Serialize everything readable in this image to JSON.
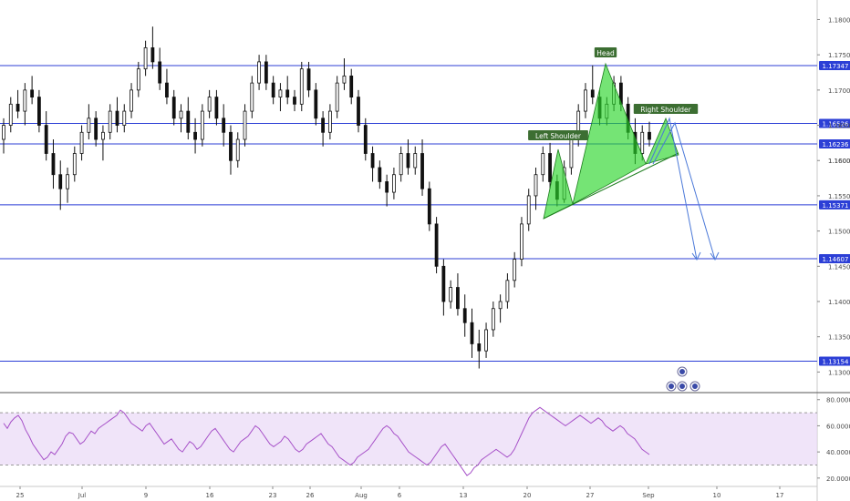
{
  "chart_data": {
    "type": "candlestick",
    "symbol_context": "forex daily price chart with RSI",
    "price_axis": {
      "ylim": [
        1.1285,
        1.182
      ],
      "ticks": [
        "1.18000",
        "1.17500",
        "1.17000",
        "1.16500",
        "1.16000",
        "1.15500",
        "1.15000",
        "1.14500",
        "1.14000",
        "1.13500",
        "1.13000"
      ]
    },
    "levels": [
      {
        "value": 1.17347,
        "label": "1.17347"
      },
      {
        "value": 1.16526,
        "label": "1.16526"
      },
      {
        "value": 1.16236,
        "label": "1.16236"
      },
      {
        "value": 1.16006,
        "label": "1.16006",
        "style": "current"
      },
      {
        "value": 1.15371,
        "label": "1.15371"
      },
      {
        "value": 1.14607,
        "label": "1.14607"
      },
      {
        "value": 1.13154,
        "label": "1.13154"
      }
    ],
    "x_axis_labels": [
      "25",
      "Jul",
      "9",
      "16",
      "23",
      "26",
      "Aug",
      "6",
      "13",
      "20",
      "27",
      "Sep",
      "10",
      "17"
    ],
    "pattern_labels": {
      "head": "Head",
      "left_shoulder": "Left Shoulder",
      "right_shoulder": "Right Shoulder"
    },
    "rsi": {
      "ylim": [
        15,
        84
      ],
      "ticks": [
        "80.0000",
        "60.0000",
        "40.0000",
        "20.0000"
      ],
      "band": [
        30,
        70
      ],
      "values": [
        62,
        58,
        63,
        66,
        68,
        64,
        57,
        52,
        46,
        42,
        38,
        34,
        36,
        40,
        38,
        42,
        46,
        52,
        55,
        54,
        50,
        46,
        48,
        52,
        56,
        54,
        58,
        60,
        62,
        64,
        66,
        68,
        72,
        70,
        66,
        62,
        60,
        58,
        56,
        60,
        62,
        58,
        54,
        50,
        46,
        48,
        50,
        46,
        42,
        40,
        44,
        48,
        46,
        42,
        44,
        48,
        52,
        56,
        58,
        54,
        50,
        46,
        42,
        40,
        44,
        48,
        50,
        52,
        56,
        60,
        58,
        54,
        50,
        46,
        44,
        46,
        48,
        52,
        50,
        46,
        42,
        40,
        42,
        46,
        48,
        50,
        52,
        54,
        50,
        46,
        44,
        40,
        36,
        34,
        32,
        30,
        32,
        36,
        38,
        40,
        42,
        46,
        50,
        54,
        58,
        60,
        58,
        54,
        52,
        48,
        44,
        40,
        38,
        36,
        34,
        32,
        30,
        32,
        36,
        40,
        44,
        46,
        42,
        38,
        34,
        30,
        26,
        22,
        24,
        28,
        30,
        34,
        36,
        38,
        40,
        42,
        40,
        38,
        36,
        38,
        42,
        48,
        54,
        60,
        66,
        70,
        72,
        74,
        72,
        70,
        68,
        66,
        64,
        62,
        60,
        62,
        64,
        66,
        68,
        66,
        64,
        62,
        64,
        66,
        64,
        60,
        58,
        56,
        58,
        60,
        58,
        54,
        52,
        50,
        46,
        42,
        40,
        38
      ]
    },
    "candles": [
      [
        1.163,
        1.166,
        1.161,
        1.165
      ],
      [
        1.165,
        1.169,
        1.164,
        1.168
      ],
      [
        1.168,
        1.17,
        1.166,
        1.167
      ],
      [
        1.167,
        1.171,
        1.165,
        1.17
      ],
      [
        1.17,
        1.172,
        1.168,
        1.169
      ],
      [
        1.169,
        1.17,
        1.164,
        1.165
      ],
      [
        1.165,
        1.167,
        1.16,
        1.161
      ],
      [
        1.161,
        1.163,
        1.156,
        1.158
      ],
      [
        1.158,
        1.16,
        1.153,
        1.156
      ],
      [
        1.156,
        1.159,
        1.154,
        1.158
      ],
      [
        1.158,
        1.162,
        1.157,
        1.161
      ],
      [
        1.161,
        1.165,
        1.16,
        1.164
      ],
      [
        1.164,
        1.168,
        1.163,
        1.166
      ],
      [
        1.166,
        1.167,
        1.162,
        1.163
      ],
      [
        1.163,
        1.165,
        1.16,
        1.164
      ],
      [
        1.164,
        1.168,
        1.163,
        1.167
      ],
      [
        1.167,
        1.169,
        1.164,
        1.165
      ],
      [
        1.165,
        1.168,
        1.164,
        1.167
      ],
      [
        1.167,
        1.171,
        1.166,
        1.17
      ],
      [
        1.17,
        1.174,
        1.169,
        1.173
      ],
      [
        1.173,
        1.177,
        1.172,
        1.176
      ],
      [
        1.176,
        1.179,
        1.173,
        1.174
      ],
      [
        1.174,
        1.176,
        1.17,
        1.171
      ],
      [
        1.171,
        1.173,
        1.168,
        1.169
      ],
      [
        1.169,
        1.17,
        1.165,
        1.166
      ],
      [
        1.166,
        1.168,
        1.164,
        1.167
      ],
      [
        1.167,
        1.169,
        1.163,
        1.164
      ],
      [
        1.164,
        1.166,
        1.161,
        1.163
      ],
      [
        1.163,
        1.168,
        1.162,
        1.167
      ],
      [
        1.167,
        1.17,
        1.166,
        1.169
      ],
      [
        1.169,
        1.17,
        1.165,
        1.166
      ],
      [
        1.166,
        1.168,
        1.162,
        1.164
      ],
      [
        1.164,
        1.165,
        1.158,
        1.16
      ],
      [
        1.16,
        1.164,
        1.159,
        1.163
      ],
      [
        1.163,
        1.168,
        1.162,
        1.167
      ],
      [
        1.167,
        1.172,
        1.166,
        1.171
      ],
      [
        1.171,
        1.175,
        1.17,
        1.174
      ],
      [
        1.174,
        1.175,
        1.17,
        1.171
      ],
      [
        1.171,
        1.172,
        1.168,
        1.169
      ],
      [
        1.169,
        1.171,
        1.167,
        1.17
      ],
      [
        1.17,
        1.172,
        1.168,
        1.169
      ],
      [
        1.169,
        1.17,
        1.167,
        1.168
      ],
      [
        1.168,
        1.174,
        1.167,
        1.173
      ],
      [
        1.173,
        1.174,
        1.169,
        1.17
      ],
      [
        1.17,
        1.171,
        1.165,
        1.166
      ],
      [
        1.166,
        1.167,
        1.162,
        1.164
      ],
      [
        1.164,
        1.168,
        1.163,
        1.167
      ],
      [
        1.167,
        1.172,
        1.166,
        1.171
      ],
      [
        1.171,
        1.1745,
        1.17,
        1.172
      ],
      [
        1.172,
        1.173,
        1.168,
        1.169
      ],
      [
        1.169,
        1.17,
        1.164,
        1.165
      ],
      [
        1.165,
        1.166,
        1.16,
        1.161
      ],
      [
        1.161,
        1.162,
        1.157,
        1.159
      ],
      [
        1.159,
        1.16,
        1.156,
        1.157
      ],
      [
        1.157,
        1.158,
        1.1535,
        1.1555
      ],
      [
        1.1555,
        1.159,
        1.1545,
        1.158
      ],
      [
        1.158,
        1.162,
        1.157,
        1.161
      ],
      [
        1.161,
        1.163,
        1.158,
        1.159
      ],
      [
        1.159,
        1.162,
        1.158,
        1.161
      ],
      [
        1.161,
        1.163,
        1.155,
        1.156
      ],
      [
        1.156,
        1.157,
        1.15,
        1.151
      ],
      [
        1.151,
        1.152,
        1.144,
        1.145
      ],
      [
        1.145,
        1.146,
        1.138,
        1.14
      ],
      [
        1.14,
        1.143,
        1.139,
        1.142
      ],
      [
        1.142,
        1.144,
        1.138,
        1.139
      ],
      [
        1.139,
        1.141,
        1.135,
        1.137
      ],
      [
        1.137,
        1.139,
        1.132,
        1.134
      ],
      [
        1.134,
        1.136,
        1.1305,
        1.133
      ],
      [
        1.133,
        1.137,
        1.132,
        1.136
      ],
      [
        1.136,
        1.14,
        1.135,
        1.139
      ],
      [
        1.139,
        1.141,
        1.137,
        1.14
      ],
      [
        1.14,
        1.144,
        1.139,
        1.143
      ],
      [
        1.143,
        1.147,
        1.142,
        1.146
      ],
      [
        1.146,
        1.152,
        1.145,
        1.151
      ],
      [
        1.151,
        1.156,
        1.15,
        1.155
      ],
      [
        1.155,
        1.159,
        1.153,
        1.158
      ],
      [
        1.158,
        1.162,
        1.157,
        1.161
      ],
      [
        1.161,
        1.1625,
        1.156,
        1.157
      ],
      [
        1.157,
        1.158,
        1.1535,
        1.1545
      ],
      [
        1.1545,
        1.16,
        1.154,
        1.159
      ],
      [
        1.159,
        1.164,
        1.158,
        1.163
      ],
      [
        1.163,
        1.168,
        1.162,
        1.167
      ],
      [
        1.167,
        1.171,
        1.166,
        1.17
      ],
      [
        1.17,
        1.1735,
        1.168,
        1.169
      ],
      [
        1.169,
        1.17,
        1.165,
        1.166
      ],
      [
        1.166,
        1.169,
        1.165,
        1.168
      ],
      [
        1.168,
        1.172,
        1.167,
        1.171
      ],
      [
        1.171,
        1.172,
        1.167,
        1.168
      ],
      [
        1.168,
        1.169,
        1.163,
        1.164
      ],
      [
        1.164,
        1.166,
        1.1595,
        1.161
      ],
      [
        1.161,
        1.165,
        1.16,
        1.164
      ],
      [
        1.164,
        1.1655,
        1.162,
        1.163
      ]
    ]
  }
}
